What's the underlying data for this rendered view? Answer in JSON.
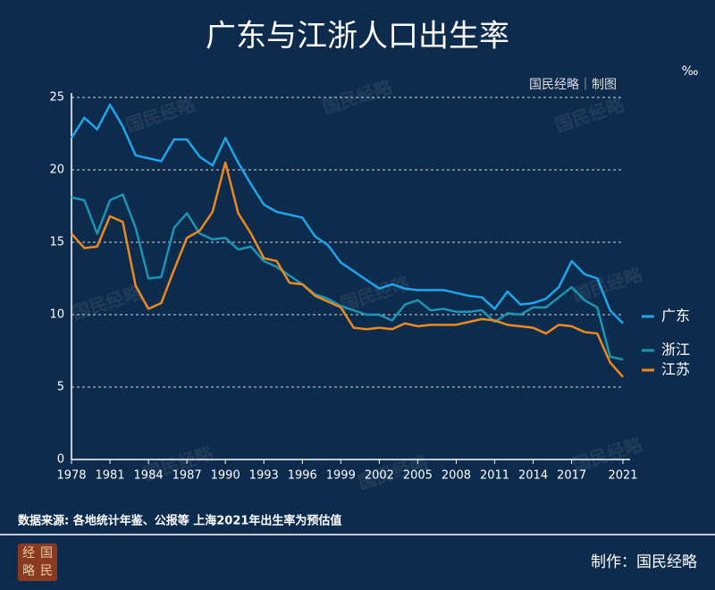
{
  "chart_data": {
    "type": "line",
    "title": "广东与江浙人口出生率",
    "unit": "‰",
    "credit": "国民经略｜制图",
    "watermark": "国民经略",
    "source": "数据来源: 各地统计年鉴、公报等 上海2021年出生率为预估值",
    "maker": "制作：国民经略",
    "logo": [
      "经",
      "国",
      "略",
      "民"
    ],
    "x": [
      1978,
      1979,
      1980,
      1981,
      1982,
      1983,
      1984,
      1985,
      1986,
      1987,
      1988,
      1989,
      1990,
      1991,
      1992,
      1993,
      1994,
      1995,
      1996,
      1997,
      1998,
      1999,
      2000,
      2001,
      2002,
      2003,
      2004,
      2005,
      2006,
      2007,
      2008,
      2009,
      2010,
      2011,
      2012,
      2013,
      2014,
      2015,
      2016,
      2017,
      2018,
      2019,
      2020,
      2021
    ],
    "series": [
      {
        "name": "广东",
        "color": "#1ea6ec",
        "values": [
          22.2,
          23.6,
          22.8,
          24.5,
          23.0,
          21.0,
          20.8,
          20.6,
          22.1,
          22.1,
          20.9,
          20.3,
          22.2,
          20.5,
          19.0,
          17.6,
          17.1,
          16.9,
          16.7,
          15.4,
          14.8,
          13.6,
          13.0,
          12.4,
          11.8,
          12.1,
          11.8,
          11.7,
          11.7,
          11.7,
          11.5,
          11.3,
          11.2,
          10.4,
          11.6,
          10.7,
          10.8,
          11.1,
          11.9,
          13.7,
          12.8,
          12.5,
          10.3,
          9.4
        ]
      },
      {
        "name": "浙江",
        "color": "#1b95b4",
        "values": [
          18.1,
          17.9,
          15.6,
          17.9,
          18.3,
          16.0,
          12.5,
          12.6,
          16.0,
          17.0,
          15.6,
          15.2,
          15.3,
          14.5,
          14.7,
          13.7,
          13.3,
          12.7,
          12.1,
          11.4,
          11.1,
          10.6,
          10.3,
          10.0,
          10.0,
          9.6,
          10.7,
          11.0,
          10.3,
          10.4,
          10.2,
          10.2,
          10.3,
          9.5,
          10.1,
          10.0,
          10.5,
          10.5,
          11.2,
          11.9,
          11.0,
          10.5,
          7.1,
          6.9
        ]
      },
      {
        "name": "江苏",
        "color": "#ec8a1e",
        "values": [
          15.6,
          14.6,
          14.7,
          16.8,
          16.4,
          12.0,
          10.4,
          10.8,
          13.1,
          15.3,
          15.8,
          17.1,
          20.5,
          17.0,
          15.6,
          13.9,
          13.7,
          12.2,
          12.1,
          11.3,
          10.9,
          10.5,
          9.1,
          9.0,
          9.1,
          9.0,
          9.4,
          9.2,
          9.3,
          9.3,
          9.3,
          9.5,
          9.7,
          9.6,
          9.3,
          9.2,
          9.1,
          8.7,
          9.3,
          9.2,
          8.8,
          8.7,
          6.7,
          5.7
        ]
      }
    ],
    "xlim": [
      1978,
      2021
    ],
    "xticks": [
      1978,
      1981,
      1984,
      1987,
      1990,
      1993,
      1996,
      1999,
      2002,
      2005,
      2008,
      2011,
      2014,
      2017,
      2021
    ],
    "ylim": [
      0,
      25
    ],
    "yticks": [
      0,
      5,
      10,
      15,
      20,
      25
    ],
    "grid": true
  }
}
